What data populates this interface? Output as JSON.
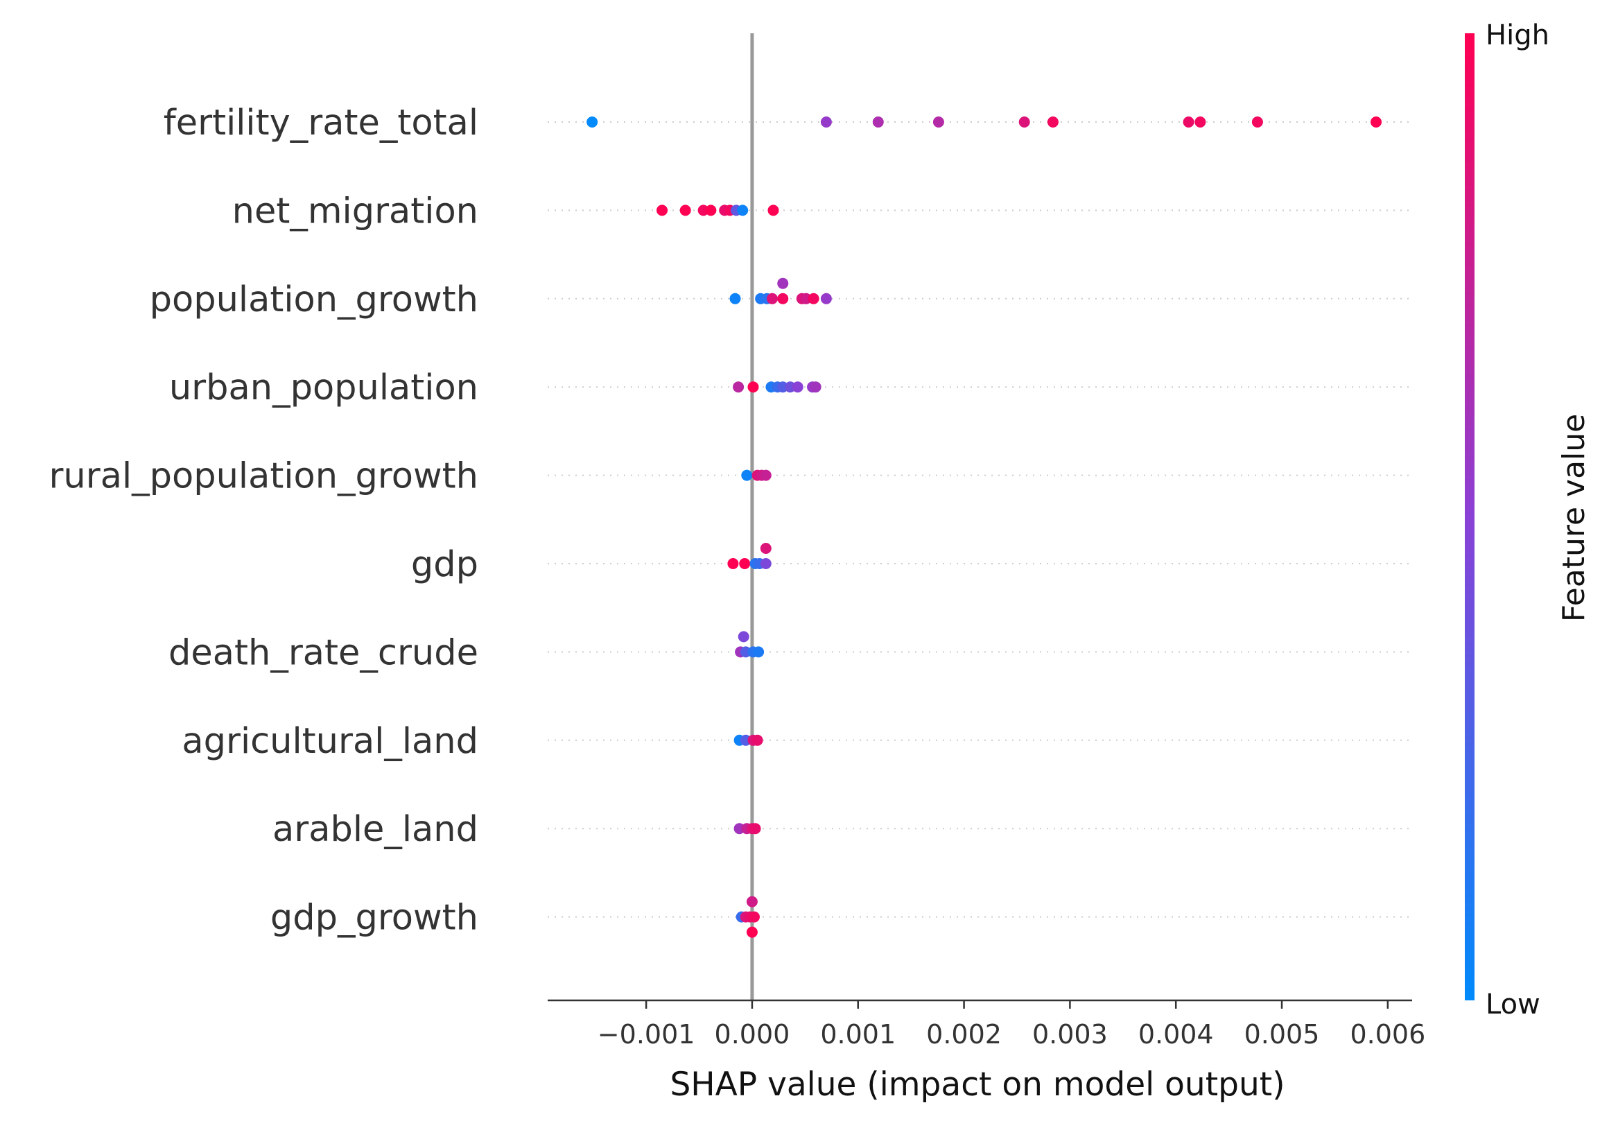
{
  "chart_data": {
    "type": "scatter",
    "subtype": "shap-beeswarm",
    "title": "",
    "xlabel": "SHAP value (impact on model output)",
    "xlim": [
      -0.00193,
      0.00623
    ],
    "xticks": [
      -0.001,
      0.0,
      0.001,
      0.002,
      0.003,
      0.004,
      0.005,
      0.006
    ],
    "xtick_labels": [
      "−0.001",
      "0.000",
      "0.001",
      "0.002",
      "0.003",
      "0.004",
      "0.005",
      "0.006"
    ],
    "zero_line": 0.0,
    "colorbar": {
      "label": "Feature value",
      "high_label": "High",
      "low_label": "Low",
      "low_color": "#008afb",
      "mid_color": "#8a41d6",
      "high_color": "#ff0052"
    },
    "features": [
      {
        "name": "fertility_rate_total",
        "points": [
          {
            "x": -0.00151,
            "offset": 0,
            "fv": 0.0
          },
          {
            "x": 0.0007,
            "offset": 0,
            "fv": 0.55
          },
          {
            "x": 0.00119,
            "offset": 0,
            "fv": 0.65
          },
          {
            "x": 0.00176,
            "offset": 0,
            "fv": 0.68
          },
          {
            "x": 0.00257,
            "offset": 0,
            "fv": 0.85
          },
          {
            "x": 0.00284,
            "offset": 0,
            "fv": 0.95
          },
          {
            "x": 0.00412,
            "offset": 0,
            "fv": 0.92
          },
          {
            "x": 0.00423,
            "offset": 0,
            "fv": 0.95
          },
          {
            "x": 0.00477,
            "offset": 0,
            "fv": 0.95
          },
          {
            "x": 0.00589,
            "offset": 0,
            "fv": 1.0
          }
        ]
      },
      {
        "name": "net_migration",
        "points": [
          {
            "x": -0.00085,
            "offset": 0,
            "fv": 1.0
          },
          {
            "x": -0.00063,
            "offset": 0,
            "fv": 1.0
          },
          {
            "x": -0.00046,
            "offset": 0,
            "fv": 0.95
          },
          {
            "x": -0.00039,
            "offset": 0,
            "fv": 1.0
          },
          {
            "x": -0.00026,
            "offset": 0,
            "fv": 0.9
          },
          {
            "x": -0.00021,
            "offset": 0,
            "fv": 0.95
          },
          {
            "x": -0.00015,
            "offset": 0,
            "fv": 0.35
          },
          {
            "x": -9e-05,
            "offset": 0,
            "fv": 0.05
          },
          {
            "x": 0.0002,
            "offset": 0,
            "fv": 1.0
          }
        ]
      },
      {
        "name": "population_growth",
        "points": [
          {
            "x": -0.00016,
            "offset": 0,
            "fv": 0.05
          },
          {
            "x": 8e-05,
            "offset": 0,
            "fv": 0.1
          },
          {
            "x": 0.00014,
            "offset": 0,
            "fv": 0.15
          },
          {
            "x": 0.00019,
            "offset": 0,
            "fv": 0.85
          },
          {
            "x": 0.00029,
            "offset": 1,
            "fv": 0.6
          },
          {
            "x": 0.00029,
            "offset": 0,
            "fv": 0.95
          },
          {
            "x": 0.00047,
            "offset": 0,
            "fv": 0.85
          },
          {
            "x": 0.00051,
            "offset": 0,
            "fv": 0.8
          },
          {
            "x": 0.00058,
            "offset": 0,
            "fv": 0.95
          },
          {
            "x": 0.0007,
            "offset": 0,
            "fv": 0.55
          }
        ]
      },
      {
        "name": "urban_population",
        "points": [
          {
            "x": -0.00013,
            "offset": 0,
            "fv": 0.7
          },
          {
            "x": 1e-05,
            "offset": 0,
            "fv": 1.0
          },
          {
            "x": 0.00018,
            "offset": 0,
            "fv": 0.1
          },
          {
            "x": 0.00024,
            "offset": 0,
            "fv": 0.2
          },
          {
            "x": 0.00029,
            "offset": 0,
            "fv": 0.3
          },
          {
            "x": 0.00036,
            "offset": 0,
            "fv": 0.4
          },
          {
            "x": 0.00043,
            "offset": 0,
            "fv": 0.5
          },
          {
            "x": 0.00057,
            "offset": 0,
            "fv": 0.55
          },
          {
            "x": 0.0006,
            "offset": 0,
            "fv": 0.6
          }
        ]
      },
      {
        "name": "rural_population_growth",
        "points": [
          {
            "x": -5e-05,
            "offset": 0,
            "fv": 0.05
          },
          {
            "x": 5e-05,
            "offset": 0,
            "fv": 0.85
          },
          {
            "x": 9e-05,
            "offset": 0,
            "fv": 0.8
          },
          {
            "x": 0.00013,
            "offset": 0,
            "fv": 0.75
          }
        ]
      },
      {
        "name": "gdp",
        "points": [
          {
            "x": -0.00018,
            "offset": 0,
            "fv": 1.0
          },
          {
            "x": -7e-05,
            "offset": 0,
            "fv": 1.0
          },
          {
            "x": 3e-05,
            "offset": 0,
            "fv": 0.15
          },
          {
            "x": 7e-05,
            "offset": 0,
            "fv": 0.2
          },
          {
            "x": 0.00013,
            "offset": 1,
            "fv": 0.85
          },
          {
            "x": 0.00013,
            "offset": 0,
            "fv": 0.45
          }
        ]
      },
      {
        "name": "death_rate_crude",
        "points": [
          {
            "x": -8e-05,
            "offset": 1,
            "fv": 0.45
          },
          {
            "x": -0.00011,
            "offset": 0,
            "fv": 0.6
          },
          {
            "x": -6e-05,
            "offset": 0,
            "fv": 0.3
          },
          {
            "x": 1e-05,
            "offset": 0,
            "fv": 0.15
          },
          {
            "x": 6e-05,
            "offset": 0,
            "fv": 0.1
          }
        ]
      },
      {
        "name": "agricultural_land",
        "points": [
          {
            "x": -0.00012,
            "offset": 0,
            "fv": 0.05
          },
          {
            "x": -6e-05,
            "offset": 0,
            "fv": 0.3
          },
          {
            "x": 1e-05,
            "offset": 0,
            "fv": 0.85
          },
          {
            "x": 5e-05,
            "offset": 0,
            "fv": 0.9
          }
        ]
      },
      {
        "name": "arable_land",
        "points": [
          {
            "x": -0.00012,
            "offset": 0,
            "fv": 0.6
          },
          {
            "x": -5e-05,
            "offset": 0,
            "fv": 0.75
          },
          {
            "x": 0.0,
            "offset": 0,
            "fv": 0.85
          },
          {
            "x": 3e-05,
            "offset": 0,
            "fv": 0.9
          }
        ]
      },
      {
        "name": "gdp_growth",
        "points": [
          {
            "x": 0.0,
            "offset": 1,
            "fv": 0.8
          },
          {
            "x": -0.0001,
            "offset": 0,
            "fv": 0.2
          },
          {
            "x": -6e-05,
            "offset": 0,
            "fv": 0.85
          },
          {
            "x": -2e-05,
            "offset": 0,
            "fv": 0.9
          },
          {
            "x": 2e-05,
            "offset": 0,
            "fv": 0.95
          },
          {
            "x": 0.0,
            "offset": -1,
            "fv": 1.0
          }
        ]
      }
    ]
  }
}
